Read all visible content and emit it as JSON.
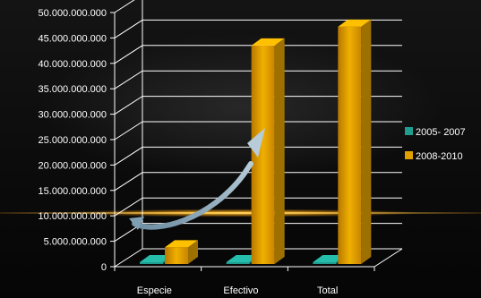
{
  "chart_data": {
    "type": "bar",
    "categories": [
      "Especie",
      "Efectivo",
      "Total"
    ],
    "series": [
      {
        "name": "2005- 2007",
        "values": [
          0,
          0,
          0
        ],
        "color": "#1f9e8f"
      },
      {
        "name": "2008-2010",
        "values": [
          3800000,
          43500000,
          47200000
        ],
        "color": "#e0a000"
      }
    ],
    "ylim": [
      0,
      50000000
    ],
    "yticks": [
      "0",
      "5.000.000.000",
      "10.000.000.000",
      "15.000.000.000",
      "20.000.000.000",
      "25.000.000.000",
      "30.000.000.000",
      "35.000.000.000",
      "40.000.000.000",
      "45.000.000.000",
      "50.000.000.000"
    ],
    "title": "",
    "xlabel": "",
    "ylabel": "",
    "grid": true,
    "legend_position": "right",
    "annotation": "curved arrow from Especie to Efectivo"
  }
}
